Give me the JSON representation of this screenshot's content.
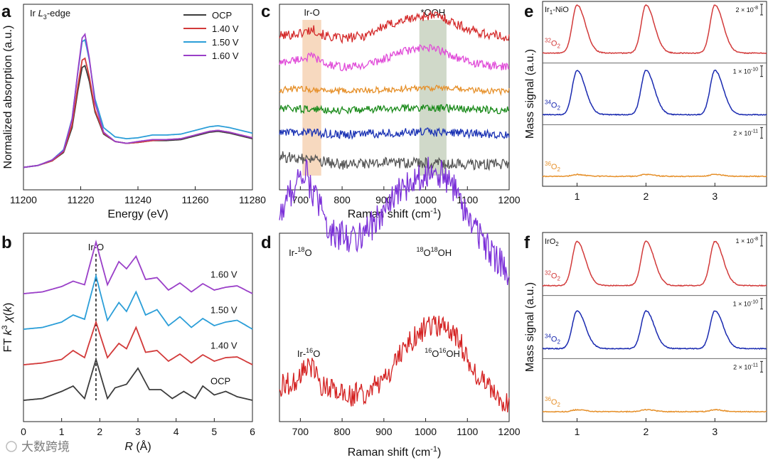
{
  "watermark": "大数跨境",
  "chart_data": [
    {
      "panel": "a",
      "type": "line",
      "annotation": "Ir L3-edge",
      "xlabel": "Energy (eV)",
      "ylabel": "Normalized absorption (a.u.)",
      "xlim": [
        11200,
        11280
      ],
      "xticks": [
        11200,
        11220,
        11240,
        11260,
        11280
      ],
      "legend_position": "top-right",
      "series": [
        {
          "name": "OCP",
          "color": "#3c3c3c",
          "x": [
            11200,
            11205,
            11210,
            11214,
            11217,
            11219,
            11220.5,
            11221.5,
            11223,
            11225,
            11228,
            11232,
            11236,
            11240,
            11245,
            11250,
            11255,
            11260,
            11265,
            11268,
            11272,
            11276,
            11280
          ],
          "y": [
            0.02,
            0.04,
            0.09,
            0.18,
            0.45,
            0.85,
            1.1,
            1.12,
            0.95,
            0.62,
            0.38,
            0.3,
            0.28,
            0.29,
            0.31,
            0.31,
            0.32,
            0.36,
            0.4,
            0.41,
            0.39,
            0.36,
            0.33
          ]
        },
        {
          "name": "1.40 V",
          "color": "#d23a3a",
          "x": [
            11200,
            11205,
            11210,
            11214,
            11217,
            11219,
            11220.5,
            11221.5,
            11223,
            11225,
            11228,
            11232,
            11236,
            11240,
            11245,
            11250,
            11255,
            11260,
            11265,
            11268,
            11272,
            11276,
            11280
          ],
          "y": [
            0.02,
            0.04,
            0.09,
            0.19,
            0.48,
            0.9,
            1.18,
            1.2,
            1.0,
            0.64,
            0.39,
            0.3,
            0.28,
            0.29,
            0.31,
            0.32,
            0.33,
            0.37,
            0.41,
            0.42,
            0.4,
            0.37,
            0.34
          ]
        },
        {
          "name": "1.50 V",
          "color": "#2b9ed8",
          "x": [
            11200,
            11205,
            11210,
            11214,
            11217,
            11219,
            11220.5,
            11221.5,
            11223,
            11225,
            11228,
            11232,
            11236,
            11240,
            11245,
            11250,
            11255,
            11260,
            11265,
            11268,
            11272,
            11276,
            11280
          ],
          "y": [
            0.02,
            0.04,
            0.1,
            0.21,
            0.55,
            1.05,
            1.38,
            1.4,
            1.18,
            0.76,
            0.45,
            0.35,
            0.33,
            0.34,
            0.37,
            0.37,
            0.38,
            0.42,
            0.46,
            0.47,
            0.45,
            0.42,
            0.39
          ]
        },
        {
          "name": "1.60 V",
          "color": "#9a3fc8",
          "x": [
            11200,
            11205,
            11210,
            11214,
            11217,
            11219,
            11220.5,
            11221.5,
            11223,
            11225,
            11228,
            11232,
            11236,
            11240,
            11245,
            11250,
            11255,
            11260,
            11265,
            11268,
            11272,
            11276,
            11280
          ],
          "y": [
            0.02,
            0.04,
            0.1,
            0.2,
            0.54,
            1.06,
            1.42,
            1.46,
            1.2,
            0.72,
            0.4,
            0.3,
            0.28,
            0.3,
            0.32,
            0.32,
            0.33,
            0.37,
            0.41,
            0.42,
            0.4,
            0.37,
            0.34
          ]
        }
      ]
    },
    {
      "panel": "b",
      "type": "line",
      "xlabel": "R (Å)",
      "ylabel": "FT k3χ(k)",
      "xlim": [
        0,
        6
      ],
      "xticks": [
        0,
        1,
        2,
        3,
        4,
        5,
        6
      ],
      "marker_label": "Ir-O",
      "marker_x": 1.9,
      "series": [
        {
          "name": "1.60 V",
          "color": "#9a3fc8",
          "offset": 3.0,
          "x": [
            0,
            0.5,
            1.0,
            1.3,
            1.6,
            1.9,
            2.2,
            2.5,
            2.7,
            2.95,
            3.2,
            3.5,
            3.8,
            4.1,
            4.4,
            4.7,
            5.0,
            5.3,
            5.6,
            6.0
          ],
          "y": [
            0.0,
            0.05,
            0.2,
            0.35,
            0.25,
            1.45,
            0.25,
            0.9,
            0.7,
            1.05,
            0.4,
            0.45,
            0.1,
            0.3,
            0.05,
            0.28,
            0.1,
            0.18,
            0.22,
            0.0
          ]
        },
        {
          "name": "1.50 V",
          "color": "#2b9ed8",
          "offset": 2.0,
          "x": [
            0,
            0.5,
            1.0,
            1.3,
            1.6,
            1.9,
            2.2,
            2.5,
            2.7,
            2.95,
            3.2,
            3.5,
            3.8,
            4.1,
            4.4,
            4.7,
            5.0,
            5.3,
            5.6,
            6.0
          ],
          "y": [
            0.0,
            0.05,
            0.2,
            0.4,
            0.28,
            1.5,
            0.25,
            0.75,
            0.5,
            1.05,
            0.4,
            0.55,
            0.1,
            0.35,
            0.05,
            0.3,
            0.1,
            0.2,
            0.25,
            0.0
          ]
        },
        {
          "name": "1.40 V",
          "color": "#d23a3a",
          "offset": 1.0,
          "x": [
            0,
            0.5,
            1.0,
            1.3,
            1.6,
            1.9,
            2.2,
            2.5,
            2.7,
            2.95,
            3.2,
            3.5,
            3.8,
            4.1,
            4.4,
            4.7,
            5.0,
            5.3,
            5.6,
            6.0
          ],
          "y": [
            0.0,
            0.05,
            0.15,
            0.4,
            0.2,
            1.2,
            0.2,
            0.6,
            0.45,
            1.05,
            0.35,
            0.4,
            0.1,
            0.3,
            0.05,
            0.28,
            0.1,
            0.2,
            0.22,
            0.0
          ]
        },
        {
          "name": "OCP",
          "color": "#3c3c3c",
          "offset": 0.0,
          "x": [
            0,
            0.5,
            1.0,
            1.3,
            1.6,
            1.9,
            2.2,
            2.4,
            2.7,
            3.0,
            3.3,
            3.6,
            3.9,
            4.2,
            4.5,
            4.7,
            5.0,
            5.3,
            5.6,
            6.0
          ],
          "y": [
            0.0,
            0.05,
            0.25,
            0.4,
            0.05,
            1.15,
            0.05,
            0.35,
            0.45,
            0.9,
            0.3,
            0.3,
            0.05,
            0.25,
            0.05,
            0.4,
            0.15,
            0.25,
            0.1,
            0.0
          ]
        }
      ]
    },
    {
      "panel": "c",
      "type": "line",
      "xlabel": "Raman shift (cm-1)",
      "xlim": [
        650,
        1200
      ],
      "xticks": [
        700,
        800,
        900,
        1000,
        1100,
        1200
      ],
      "bands": [
        {
          "label": "Ir-O",
          "range": [
            705,
            750
          ],
          "color": "#f6d2b4"
        },
        {
          "label": "*OOH",
          "range": [
            985,
            1050
          ],
          "color": "#c8d2c0"
        }
      ],
      "series": [
        {
          "color": "#d42a2a",
          "offset": 5.0,
          "noise": 0.18,
          "x": [
            650,
            700,
            730,
            760,
            800,
            850,
            900,
            950,
            1000,
            1030,
            1060,
            1100,
            1150,
            1200
          ],
          "y": [
            0.3,
            0.4,
            0.55,
            0.3,
            0.2,
            0.3,
            0.65,
            0.9,
            1.05,
            1.05,
            0.85,
            0.55,
            0.35,
            0.25
          ]
        },
        {
          "color": "#e04ad8",
          "offset": 4.0,
          "noise": 0.15,
          "x": [
            650,
            700,
            730,
            760,
            800,
            850,
            900,
            950,
            1000,
            1030,
            1060,
            1100,
            1150,
            1200
          ],
          "y": [
            0.3,
            0.45,
            0.55,
            0.25,
            0.15,
            0.2,
            0.45,
            0.75,
            0.85,
            0.8,
            0.6,
            0.35,
            0.2,
            0.15
          ]
        },
        {
          "color": "#e6902a",
          "offset": 3.15,
          "noise": 0.12,
          "x": [
            650,
            700,
            800,
            900,
            1000,
            1100,
            1200
          ],
          "y": [
            0.15,
            0.2,
            0.1,
            0.15,
            0.25,
            0.15,
            0.1
          ]
        },
        {
          "color": "#1a8a1a",
          "offset": 2.45,
          "noise": 0.14,
          "x": [
            650,
            700,
            800,
            900,
            1000,
            1100,
            1200
          ],
          "y": [
            0.15,
            0.15,
            0.1,
            0.15,
            0.2,
            0.15,
            0.1
          ]
        },
        {
          "color": "#1a32b4",
          "offset": 1.6,
          "noise": 0.16,
          "x": [
            650,
            700,
            800,
            900,
            1000,
            1100,
            1200
          ],
          "y": [
            0.1,
            0.15,
            0.05,
            0.1,
            0.15,
            0.1,
            0.05
          ]
        },
        {
          "color": "#555555",
          "offset": 0.55,
          "noise": 0.2,
          "x": [
            650,
            700,
            800,
            900,
            1000,
            1100,
            1200
          ],
          "y": [
            0.3,
            0.2,
            0.0,
            0.05,
            0.05,
            0.0,
            0.0
          ]
        }
      ]
    },
    {
      "panel": "d",
      "type": "line",
      "xlabel": "Raman shift (cm-1)",
      "xlim": [
        650,
        1200
      ],
      "xticks": [
        700,
        800,
        900,
        1000,
        1100,
        1200
      ],
      "series": [
        {
          "color": "#7b2fd8",
          "offset": 1.0,
          "noise": 0.12,
          "labels": [
            {
              "text": "Ir-18O",
              "x": 700
            },
            {
              "text": "18O18OH",
              "x": 1020
            }
          ],
          "x": [
            650,
            680,
            710,
            740,
            780,
            830,
            880,
            930,
            980,
            1020,
            1060,
            1100,
            1150,
            1200
          ],
          "y": [
            0.55,
            0.75,
            0.9,
            0.65,
            0.4,
            0.38,
            0.5,
            0.7,
            0.85,
            0.9,
            0.8,
            0.55,
            0.3,
            0.1
          ]
        },
        {
          "color": "#d42222",
          "offset": 0.0,
          "noise": 0.09,
          "labels": [
            {
              "text": "Ir-16O",
              "x": 720
            },
            {
              "text": "16O16OH",
              "x": 1040
            }
          ],
          "x": [
            650,
            690,
            720,
            750,
            800,
            850,
            900,
            950,
            1000,
            1040,
            1080,
            1120,
            1160,
            1200
          ],
          "y": [
            0.25,
            0.3,
            0.45,
            0.25,
            0.18,
            0.2,
            0.3,
            0.55,
            0.7,
            0.72,
            0.6,
            0.35,
            0.2,
            0.1
          ]
        }
      ]
    },
    {
      "panel": "e",
      "type": "line",
      "annotation": "Ir1-NiO",
      "ylabel": "Mass signal (a.u.)",
      "xlim": [
        0.5,
        3.75
      ],
      "xticks": [
        1,
        2,
        3
      ],
      "peaks": [
        1.0,
        2.0,
        3.0
      ],
      "rows": [
        {
          "name": "32O2",
          "mass": "32",
          "scale_mantissa": "2 × 10",
          "scale_exp": "-8",
          "color": "#d23a3a",
          "amplitude": 0.78
        },
        {
          "name": "34O2",
          "mass": "34",
          "scale_mantissa": "1 × 10",
          "scale_exp": "-10",
          "color": "#1a2ab0",
          "amplitude": 0.72
        },
        {
          "name": "36O2",
          "mass": "36",
          "scale_mantissa": "2 × 10",
          "scale_exp": "-11",
          "color": "#e6902a",
          "amplitude": 0.03
        }
      ]
    },
    {
      "panel": "f",
      "type": "line",
      "annotation": "IrO2",
      "ylabel": "Mass signal (a.u.)",
      "xlim": [
        0.5,
        3.75
      ],
      "xticks": [
        1,
        2,
        3
      ],
      "peaks": [
        1.0,
        2.0,
        3.0
      ],
      "rows": [
        {
          "name": "32O2",
          "mass": "32",
          "scale_mantissa": "1 × 10",
          "scale_exp": "-8",
          "color": "#d23a3a",
          "amplitude": 0.7
        },
        {
          "name": "34O2",
          "mass": "34",
          "scale_mantissa": "1 × 10",
          "scale_exp": "-10",
          "color": "#1a2ab0",
          "amplitude": 0.6
        },
        {
          "name": "36O2",
          "mass": "36",
          "scale_mantissa": "2 × 10",
          "scale_exp": "-11",
          "color": "#e6902a",
          "amplitude": 0.03
        }
      ]
    }
  ]
}
